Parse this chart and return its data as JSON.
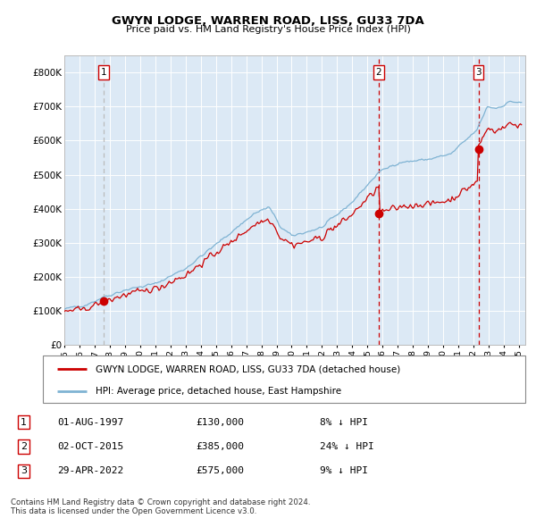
{
  "title": "GWYN LODGE, WARREN ROAD, LISS, GU33 7DA",
  "subtitle": "Price paid vs. HM Land Registry's House Price Index (HPI)",
  "sale_dates": [
    "1997-08-01",
    "2015-10-02",
    "2022-04-29"
  ],
  "sale_prices": [
    130000,
    385000,
    575000
  ],
  "sale_labels": [
    "1",
    "2",
    "3"
  ],
  "legend_property": "GWYN LODGE, WARREN ROAD, LISS, GU33 7DA (detached house)",
  "legend_hpi": "HPI: Average price, detached house, East Hampshire",
  "table_rows": [
    [
      "1",
      "01-AUG-1997",
      "£130,000",
      "8% ↓ HPI"
    ],
    [
      "2",
      "02-OCT-2015",
      "£385,000",
      "24% ↓ HPI"
    ],
    [
      "3",
      "29-APR-2022",
      "£575,000",
      "9% ↓ HPI"
    ]
  ],
  "footer1": "Contains HM Land Registry data © Crown copyright and database right 2024.",
  "footer2": "This data is licensed under the Open Government Licence v3.0.",
  "bg_color": "#dce9f5",
  "red_line_color": "#cc0000",
  "blue_line_color": "#7fb3d3",
  "ylim": [
    0,
    850000
  ],
  "yticks": [
    0,
    100000,
    200000,
    300000,
    400000,
    500000,
    600000,
    700000,
    800000
  ],
  "ytick_labels": [
    "£0",
    "£100K",
    "£200K",
    "£300K",
    "£400K",
    "£500K",
    "£600K",
    "£700K",
    "£800K"
  ]
}
